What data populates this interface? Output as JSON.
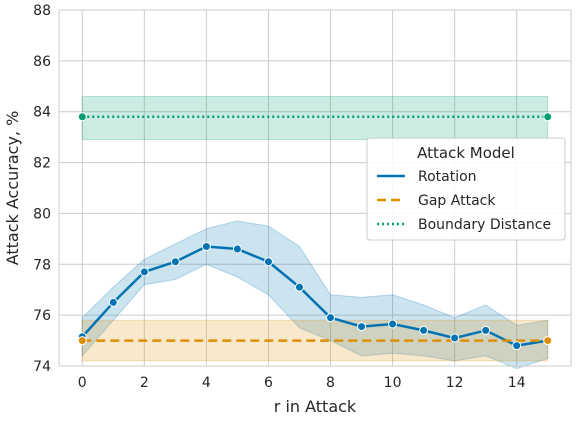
{
  "chart_data": {
    "type": "line",
    "xlabel": "r in Attack",
    "ylabel": "Attack Accuracy, %",
    "xlim": [
      -0.75,
      15.75
    ],
    "ylim": [
      74,
      88
    ],
    "xticks": [
      0,
      2,
      4,
      6,
      8,
      10,
      12,
      14
    ],
    "yticks": [
      74,
      76,
      78,
      80,
      82,
      84,
      86,
      88
    ],
    "grid": true,
    "legend": {
      "title": "Attack Model",
      "placement": "center-right"
    },
    "series": [
      {
        "name": "Rotation",
        "color": "#0173b2",
        "style": "solid",
        "x": [
          0,
          1,
          2,
          3,
          4,
          5,
          6,
          7,
          8,
          9,
          10,
          11,
          12,
          13,
          14,
          15
        ],
        "values": [
          75.15,
          76.5,
          77.7,
          78.1,
          78.7,
          78.6,
          78.1,
          77.1,
          75.9,
          75.55,
          75.65,
          75.4,
          75.1,
          75.4,
          74.8,
          75.0
        ],
        "lower": [
          74.4,
          75.8,
          77.2,
          77.4,
          78.0,
          77.5,
          76.8,
          75.5,
          75.0,
          74.4,
          74.5,
          74.4,
          74.2,
          74.4,
          73.9,
          74.3
        ],
        "upper": [
          75.9,
          77.1,
          78.2,
          78.8,
          79.4,
          79.7,
          79.5,
          78.7,
          76.8,
          76.7,
          76.8,
          76.4,
          75.9,
          76.4,
          75.6,
          75.8
        ]
      },
      {
        "name": "Gap Attack",
        "color": "#de8f05",
        "style": "dashed",
        "x": [
          0,
          15
        ],
        "values": [
          75.0,
          75.0
        ],
        "lower": [
          74.2,
          74.2
        ],
        "upper": [
          75.8,
          75.8
        ]
      },
      {
        "name": "Boundary Distance",
        "color": "#029e73",
        "style": "dotted",
        "x": [
          0,
          15
        ],
        "values": [
          83.8,
          83.8
        ],
        "lower": [
          82.9,
          82.9
        ],
        "upper": [
          84.6,
          84.6
        ]
      }
    ]
  }
}
